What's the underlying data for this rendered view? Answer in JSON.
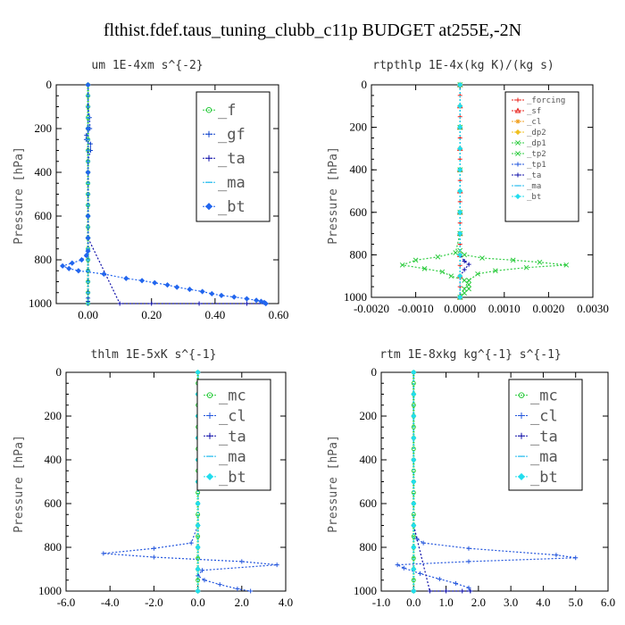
{
  "page_title": "flthist.fdef.taus_tuning_clubb_c11p  BUDGET at255E,-2N",
  "colors": {
    "red": "#e8201a",
    "orange": "#f0a020",
    "green": "#2ecc40",
    "blue": "#2255dd",
    "darkblue": "#1111aa",
    "cyan": "#22bbee",
    "lightcyan": "#22ddee"
  },
  "chart_data": [
    {
      "type": "line",
      "title": "um  1E-4xm s^{-2}",
      "ylabel": "Pressure [hPa]",
      "xlabel": "",
      "xlim": [
        -0.1,
        0.6
      ],
      "ylim": [
        1000,
        0
      ],
      "xticks": [
        0.0,
        0.2,
        0.4,
        0.6
      ],
      "xtick_labels": [
        "0.00",
        "0.20",
        "0.40",
        "0.60"
      ],
      "yticks": [
        0,
        200,
        400,
        600,
        800,
        1000
      ],
      "ytick_labels": [
        "0",
        "200",
        "400",
        "600",
        "800",
        "1000"
      ],
      "legend_position": "top-right",
      "legend_size": "large",
      "series": [
        {
          "name": "_f",
          "color": "#2ecc40",
          "marker": "circle",
          "x": [
            0,
            0,
            0,
            0,
            0,
            0,
            0,
            0,
            0,
            0,
            0,
            0,
            0,
            0,
            0,
            0,
            0,
            0,
            0,
            0,
            0
          ],
          "y": [
            0,
            50,
            100,
            150,
            200,
            250,
            300,
            350,
            400,
            450,
            500,
            550,
            600,
            650,
            700,
            750,
            800,
            850,
            900,
            950,
            1000
          ]
        },
        {
          "name": "_gf",
          "color": "#1144cc",
          "marker": "plus",
          "x": [
            0,
            0,
            0,
            0.005,
            0.006,
            -0.005,
            -0.006,
            0.008,
            0.008,
            0,
            0,
            0,
            0,
            0,
            0,
            0,
            0,
            0,
            0,
            0,
            0
          ],
          "y": [
            0,
            50,
            100,
            150,
            200,
            230,
            250,
            270,
            300,
            350,
            400,
            500,
            600,
            700,
            800,
            850,
            900,
            950,
            975,
            990,
            1000
          ]
        },
        {
          "name": "_ta",
          "color": "#1111aa",
          "marker": "plus",
          "x": [
            0,
            0,
            0,
            0,
            0,
            0,
            0,
            0,
            0.1,
            0.2,
            0.35,
            0.5,
            0.56
          ],
          "y": [
            0,
            100,
            200,
            300,
            400,
            500,
            600,
            700,
            1000,
            1000,
            1000,
            1000,
            1000
          ]
        },
        {
          "name": "_ma",
          "color": "#22bbee",
          "marker": "dash",
          "x": [
            0,
            0,
            0,
            0,
            0,
            0,
            0,
            0,
            0,
            0,
            0,
            0,
            0,
            0,
            0,
            0,
            0,
            0,
            0,
            0,
            0
          ],
          "y": [
            0,
            50,
            100,
            150,
            200,
            250,
            300,
            350,
            400,
            450,
            500,
            550,
            600,
            650,
            700,
            750,
            800,
            850,
            900,
            950,
            1000
          ]
        },
        {
          "name": "_bt",
          "color": "#2266ee",
          "marker": "diamond",
          "x": [
            0,
            0,
            0,
            0,
            0,
            0,
            -0.005,
            -0.02,
            -0.05,
            -0.08,
            -0.06,
            -0.03,
            0.05,
            0.12,
            0.17,
            0.21,
            0.25,
            0.28,
            0.32,
            0.36,
            0.39,
            0.42,
            0.46,
            0.5,
            0.53,
            0.545,
            0.555,
            0.56
          ],
          "y": [
            0,
            200,
            400,
            600,
            700,
            760,
            780,
            800,
            815,
            828,
            840,
            850,
            865,
            885,
            895,
            905,
            915,
            925,
            935,
            945,
            955,
            963,
            970,
            978,
            985,
            990,
            995,
            1000
          ]
        }
      ]
    },
    {
      "type": "line",
      "title": "rtpthlp  1E-4x(kg K)/(kg s)",
      "ylabel": "Pressure [hPa]",
      "xlabel": "",
      "xlim": [
        -0.002,
        0.003
      ],
      "ylim": [
        1000,
        0
      ],
      "xticks": [
        -0.002,
        -0.001,
        0.0,
        0.001,
        0.002,
        0.003
      ],
      "xtick_labels": [
        "-0.0020",
        "-0.0010",
        "0.0000",
        "0.0010",
        "0.0020",
        "0.0030"
      ],
      "yticks": [
        0,
        200,
        400,
        600,
        800,
        1000
      ],
      "ytick_labels": [
        "0",
        "200",
        "400",
        "600",
        "800",
        "1000"
      ],
      "legend_position": "top-right",
      "legend_size": "small",
      "series": [
        {
          "name": "_forcing",
          "color": "#e8201a",
          "marker": "plus",
          "x": [
            0,
            0,
            0,
            0,
            0,
            0,
            0,
            0,
            0,
            0,
            0,
            0,
            0,
            0,
            0,
            0,
            0,
            0,
            0,
            0,
            0
          ],
          "y": [
            0,
            50,
            100,
            150,
            200,
            250,
            300,
            350,
            400,
            450,
            500,
            550,
            600,
            650,
            700,
            750,
            800,
            850,
            900,
            950,
            1000
          ]
        },
        {
          "name": "_sf",
          "color": "#e8201a",
          "marker": "triangle",
          "x": [
            0,
            0,
            0,
            0,
            0,
            0,
            0,
            0,
            0,
            0,
            0
          ],
          "y": [
            0,
            100,
            200,
            300,
            400,
            500,
            600,
            700,
            800,
            900,
            1000
          ]
        },
        {
          "name": "_cl",
          "color": "#f0a020",
          "marker": "star",
          "x": [
            0,
            0,
            0,
            0,
            0,
            0,
            0,
            0,
            0,
            0,
            0
          ],
          "y": [
            0,
            100,
            200,
            300,
            400,
            500,
            600,
            700,
            800,
            900,
            1000
          ]
        },
        {
          "name": "_dp2",
          "color": "#f0c020",
          "marker": "diamond",
          "x": [
            0,
            0,
            0,
            0,
            0,
            0,
            0,
            0,
            0,
            0,
            0
          ],
          "y": [
            0,
            100,
            200,
            300,
            400,
            500,
            600,
            700,
            800,
            900,
            1000
          ]
        },
        {
          "name": "_dp1",
          "color": "#2ecc40",
          "marker": "cross",
          "x": [
            0,
            0,
            0,
            0,
            0,
            0,
            0.0001,
            0.0005,
            0.0012,
            0.0018,
            0.0024,
            0.0015,
            0.0008,
            0.0004,
            0.0002,
            0.0001,
            0
          ],
          "y": [
            0,
            200,
            400,
            600,
            700,
            780,
            800,
            815,
            825,
            835,
            848,
            860,
            875,
            890,
            920,
            960,
            1000
          ]
        },
        {
          "name": "_tp2",
          "color": "#2ecc40",
          "marker": "cross",
          "x": [
            0,
            0,
            0,
            0,
            0,
            -0.0001,
            -0.0005,
            -0.001,
            -0.0013,
            -0.0008,
            -0.0004,
            -0.0002,
            0.0001,
            0.0002,
            0.0002,
            0.0001,
            0
          ],
          "y": [
            0,
            200,
            400,
            600,
            700,
            790,
            810,
            825,
            848,
            865,
            880,
            900,
            920,
            940,
            960,
            980,
            1000
          ]
        },
        {
          "name": "_tp1",
          "color": "#2255dd",
          "marker": "plus",
          "x": [
            0,
            0,
            0,
            0,
            0,
            0,
            0,
            0,
            0,
            0
          ],
          "y": [
            0,
            100,
            200,
            300,
            400,
            500,
            600,
            700,
            800,
            1000
          ]
        },
        {
          "name": "_ta",
          "color": "#1111aa",
          "marker": "plus",
          "x": [
            0,
            0,
            0,
            0,
            0.0001,
            0.0002,
            0.0001,
            0,
            0
          ],
          "y": [
            0,
            200,
            400,
            800,
            830,
            845,
            870,
            900,
            1000
          ]
        },
        {
          "name": "_ma",
          "color": "#22bbee",
          "marker": "dash",
          "x": [
            0,
            0,
            0,
            0,
            0,
            0,
            0,
            0,
            0,
            0,
            0
          ],
          "y": [
            0,
            100,
            200,
            300,
            400,
            500,
            600,
            700,
            800,
            900,
            1000
          ]
        },
        {
          "name": "_bt",
          "color": "#22ddee",
          "marker": "diamond",
          "x": [
            0,
            0,
            0,
            0,
            0,
            0,
            0,
            0,
            0,
            0,
            0
          ],
          "y": [
            0,
            100,
            200,
            300,
            400,
            500,
            600,
            700,
            800,
            900,
            1000
          ]
        }
      ]
    },
    {
      "type": "line",
      "title": "thlm  1E-5xK s^{-1}",
      "ylabel": "Pressure [hPa]",
      "xlabel": "",
      "xlim": [
        -6.0,
        4.0
      ],
      "ylim": [
        1000,
        0
      ],
      "xticks": [
        -6,
        -4,
        -2,
        0,
        2,
        4
      ],
      "xtick_labels": [
        "-6.0",
        "-4.0",
        "-2.0",
        "0.0",
        "2.0",
        "4.0"
      ],
      "yticks": [
        0,
        200,
        400,
        600,
        800,
        1000
      ],
      "ytick_labels": [
        "0",
        "200",
        "400",
        "600",
        "800",
        "1000"
      ],
      "legend_position": "top-right",
      "legend_size": "large",
      "series": [
        {
          "name": "_mc",
          "color": "#2ecc40",
          "marker": "circle",
          "x": [
            0,
            0,
            0,
            0,
            0,
            0,
            0,
            0,
            0,
            0,
            0,
            0,
            0,
            0,
            0,
            0,
            0,
            0,
            0,
            0,
            0
          ],
          "y": [
            0,
            50,
            100,
            150,
            200,
            250,
            300,
            350,
            400,
            450,
            500,
            550,
            600,
            650,
            700,
            750,
            800,
            850,
            900,
            950,
            1000
          ]
        },
        {
          "name": "_cl",
          "color": "#2255dd",
          "marker": "plus",
          "x": [
            0,
            0,
            0,
            0,
            0,
            -0.3,
            -2.0,
            -4.3,
            -2.0,
            2.0,
            3.6,
            0.2,
            0,
            0.3,
            1.0,
            1.8,
            2.4
          ],
          "y": [
            0,
            200,
            400,
            600,
            700,
            780,
            805,
            828,
            845,
            865,
            880,
            905,
            930,
            950,
            970,
            990,
            1000
          ]
        },
        {
          "name": "_ta",
          "color": "#1111aa",
          "marker": "plus",
          "x": [
            0,
            0,
            0,
            0,
            0,
            0,
            0,
            0,
            0,
            0,
            0
          ],
          "y": [
            0,
            100,
            200,
            300,
            400,
            500,
            600,
            700,
            800,
            900,
            1000
          ]
        },
        {
          "name": "_ma",
          "color": "#22bbee",
          "marker": "dash",
          "x": [
            0,
            0,
            0,
            0,
            0,
            0,
            0,
            0,
            0,
            0,
            0
          ],
          "y": [
            0,
            100,
            200,
            300,
            400,
            500,
            600,
            700,
            800,
            900,
            1000
          ]
        },
        {
          "name": "_bt",
          "color": "#22ddee",
          "marker": "diamond",
          "x": [
            0,
            0,
            0,
            0,
            0,
            0,
            0,
            0,
            0,
            0,
            0
          ],
          "y": [
            0,
            100,
            200,
            300,
            400,
            500,
            600,
            700,
            800,
            900,
            1000
          ]
        }
      ]
    },
    {
      "type": "line",
      "title": "rtm  1E-8xkg kg^{-1} s^{-1}",
      "ylabel": "Pressure [hPa]",
      "xlabel": "",
      "xlim": [
        -1.0,
        6.0
      ],
      "ylim": [
        1000,
        0
      ],
      "xticks": [
        -1,
        0,
        1,
        2,
        3,
        4,
        5,
        6
      ],
      "xtick_labels": [
        "-1.0",
        "0.0",
        "1.0",
        "2.0",
        "3.0",
        "4.0",
        "5.0",
        "6.0"
      ],
      "yticks": [
        0,
        200,
        400,
        600,
        800,
        1000
      ],
      "ytick_labels": [
        "0",
        "200",
        "400",
        "600",
        "800",
        "1000"
      ],
      "legend_position": "top-right",
      "legend_size": "large",
      "series": [
        {
          "name": "_mc",
          "color": "#2ecc40",
          "marker": "circle",
          "x": [
            0,
            0,
            0,
            0,
            0,
            0,
            0,
            0,
            0,
            0,
            0,
            0,
            0,
            0,
            0,
            0,
            0,
            0,
            0,
            0,
            0
          ],
          "y": [
            0,
            50,
            100,
            150,
            200,
            250,
            300,
            350,
            400,
            450,
            500,
            550,
            600,
            650,
            700,
            750,
            800,
            850,
            900,
            950,
            1000
          ]
        },
        {
          "name": "_cl",
          "color": "#2255dd",
          "marker": "plus",
          "x": [
            0,
            0,
            0,
            0,
            0,
            0.1,
            0.3,
            1.7,
            4.4,
            5.0,
            1.7,
            -0.5,
            -0.3,
            0.2,
            0.8,
            1.3,
            1.7,
            1.75
          ],
          "y": [
            0,
            200,
            400,
            600,
            700,
            760,
            780,
            805,
            835,
            848,
            865,
            880,
            895,
            920,
            945,
            965,
            985,
            1000
          ]
        },
        {
          "name": "_ta",
          "color": "#1111aa",
          "marker": "plus",
          "x": [
            0,
            0,
            0,
            0,
            0,
            0,
            0,
            0,
            0.5,
            1.0,
            1.5,
            1.75
          ],
          "y": [
            0,
            100,
            200,
            300,
            400,
            500,
            600,
            700,
            1000,
            1000,
            1000,
            1000
          ]
        },
        {
          "name": "_ma",
          "color": "#22bbee",
          "marker": "dash",
          "x": [
            0,
            0,
            0,
            0,
            0,
            0,
            0,
            0,
            0,
            0,
            0
          ],
          "y": [
            0,
            100,
            200,
            300,
            400,
            500,
            600,
            700,
            800,
            900,
            1000
          ]
        },
        {
          "name": "_bt",
          "color": "#22ddee",
          "marker": "diamond",
          "x": [
            0,
            0,
            0,
            0,
            0,
            0,
            0,
            0,
            0,
            0,
            0
          ],
          "y": [
            0,
            100,
            200,
            300,
            400,
            500,
            600,
            700,
            800,
            900,
            1000
          ]
        }
      ]
    }
  ]
}
